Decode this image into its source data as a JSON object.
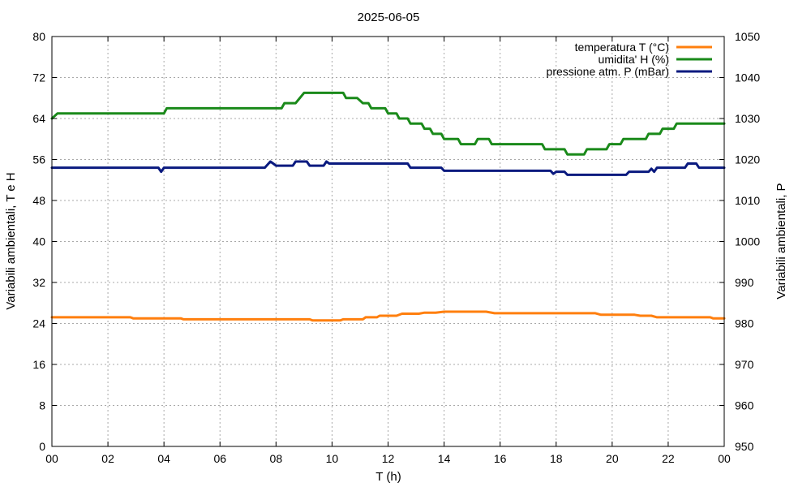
{
  "chart_data": {
    "type": "line",
    "title": "2025-06-05",
    "xlabel": "T (h)",
    "ylabel_left": "Variabili ambientali, T e H",
    "ylabel_right": "Variabili ambientali, P",
    "x_ticks": [
      "00",
      "02",
      "04",
      "06",
      "08",
      "10",
      "12",
      "14",
      "16",
      "18",
      "20",
      "22",
      "00"
    ],
    "xlim": [
      0,
      24
    ],
    "ylim_left": [
      0,
      80
    ],
    "ylim_right": [
      950,
      1050
    ],
    "y_ticks_left": [
      "0",
      "8",
      "16",
      "24",
      "32",
      "40",
      "48",
      "56",
      "64",
      "72",
      "80"
    ],
    "y_ticks_right": [
      "950",
      "960",
      "970",
      "980",
      "990",
      "1000",
      "1010",
      "1020",
      "1030",
      "1040",
      "1050"
    ],
    "grid": true,
    "legend_position": "top-right",
    "series": [
      {
        "name": "temperatura T (°C)",
        "color": "#ff7f0e",
        "axis": "left",
        "x": [
          0,
          2.8,
          2.9,
          4.6,
          4.7,
          9.2,
          9.3,
          10.3,
          10.4,
          11.1,
          11.2,
          11.6,
          11.7,
          12.3,
          12.5,
          13.1,
          13.3,
          13.7,
          14.0,
          15.5,
          15.8,
          19.4,
          19.6,
          20.8,
          21.0,
          21.4,
          21.6,
          23.5,
          23.6,
          24.0
        ],
        "y": [
          25.2,
          25.2,
          25.0,
          25.0,
          24.8,
          24.8,
          24.6,
          24.6,
          24.8,
          24.8,
          25.2,
          25.2,
          25.5,
          25.5,
          25.9,
          25.9,
          26.1,
          26.1,
          26.3,
          26.3,
          26.0,
          26.0,
          25.7,
          25.7,
          25.5,
          25.5,
          25.2,
          25.2,
          25.0,
          25.0
        ]
      },
      {
        "name": "umidita' H (%)",
        "color": "#1a8a1a",
        "axis": "left",
        "x": [
          0,
          0.2,
          4.0,
          4.1,
          8.2,
          8.3,
          8.7,
          9.0,
          10.4,
          10.5,
          10.9,
          11.1,
          11.3,
          11.4,
          11.9,
          12.0,
          12.3,
          12.4,
          12.7,
          12.8,
          13.2,
          13.3,
          13.5,
          13.6,
          13.9,
          14.0,
          14.5,
          14.6,
          15.1,
          15.2,
          15.6,
          15.7,
          16.1,
          16.2,
          17.5,
          17.6,
          18.3,
          18.4,
          19.0,
          19.1,
          19.8,
          19.9,
          20.3,
          20.4,
          21.2,
          21.3,
          21.7,
          21.8,
          22.2,
          22.3,
          24.0
        ],
        "y": [
          64,
          65,
          65,
          66,
          66,
          67,
          67,
          69,
          69,
          68,
          68,
          67,
          67,
          66,
          66,
          65,
          65,
          64,
          64,
          63,
          63,
          62,
          62,
          61,
          61,
          60,
          60,
          59,
          59,
          60,
          60,
          59,
          59,
          59,
          59,
          58,
          58,
          57,
          57,
          58,
          58,
          59,
          59,
          60,
          60,
          61,
          61,
          62,
          62,
          63,
          63
        ]
      },
      {
        "name": "pressione atm. P (mBar)",
        "color": "#0a1a7f",
        "axis": "left",
        "x": [
          0,
          3.8,
          3.9,
          4.0,
          7.6,
          7.8,
          7.9,
          8.0,
          8.6,
          8.7,
          9.1,
          9.2,
          9.7,
          9.8,
          9.9,
          10.0,
          12.7,
          12.8,
          13.9,
          14.0,
          17.8,
          17.9,
          18.0,
          18.3,
          18.4,
          20.5,
          20.6,
          21.3,
          21.4,
          21.5,
          21.6,
          22.6,
          22.7,
          23.0,
          23.1,
          24.0
        ],
        "y": [
          54.4,
          54.4,
          53.6,
          54.4,
          54.4,
          55.6,
          55.2,
          54.8,
          54.8,
          55.6,
          55.6,
          54.8,
          54.8,
          55.6,
          55.2,
          55.2,
          55.2,
          54.4,
          54.4,
          53.8,
          53.8,
          53.2,
          53.6,
          53.6,
          53.0,
          53.0,
          53.6,
          53.6,
          54.2,
          53.6,
          54.4,
          54.4,
          55.2,
          55.2,
          54.4,
          54.4
        ]
      }
    ]
  }
}
